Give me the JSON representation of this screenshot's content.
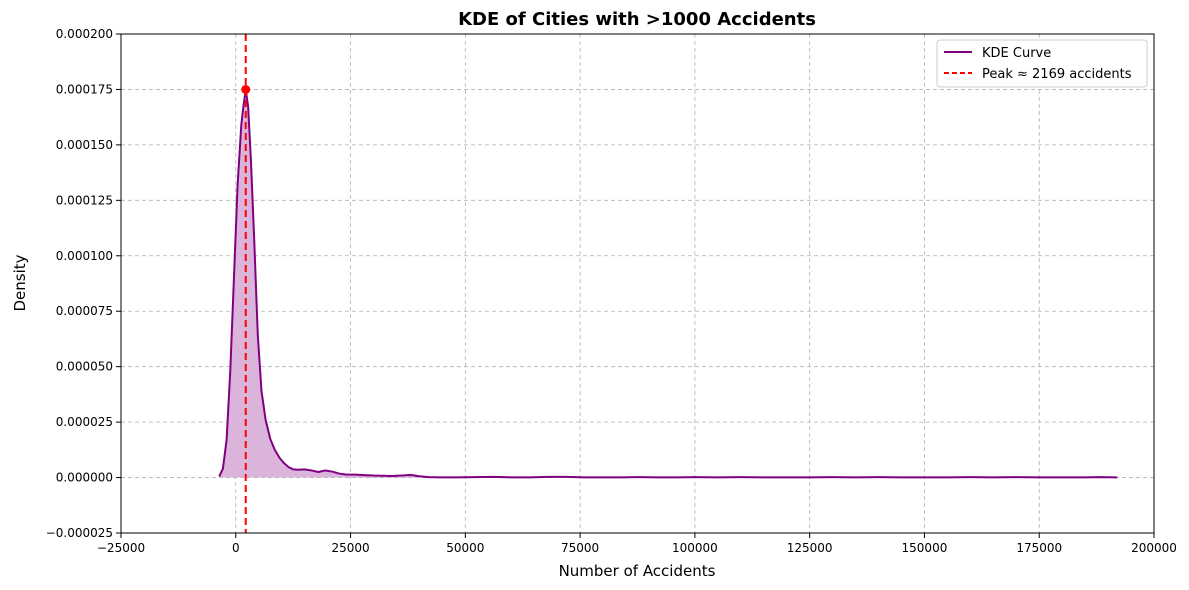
{
  "chart_data": {
    "type": "area",
    "title": "KDE of Cities with >1000 Accidents",
    "xlabel": "Number of Accidents",
    "ylabel": "Density",
    "xlim": [
      -25000,
      200000
    ],
    "ylim": [
      -2.5e-05,
      0.0002
    ],
    "x_ticks": [
      -25000,
      0,
      25000,
      50000,
      75000,
      100000,
      125000,
      150000,
      175000,
      200000
    ],
    "y_ticks": [
      -2.5e-05,
      0,
      2.5e-05,
      5e-05,
      7.5e-05,
      0.0001,
      0.000125,
      0.00015,
      0.000175,
      0.0002
    ],
    "x_tick_labels": [
      "−25000",
      "0",
      "25000",
      "50000",
      "75000",
      "100000",
      "125000",
      "150000",
      "175000",
      "200000"
    ],
    "y_tick_labels": [
      "−0.000025",
      "0.000000",
      "0.000025",
      "0.000050",
      "0.000075",
      "0.000100",
      "0.000125",
      "0.000150",
      "0.000175",
      "0.000200"
    ],
    "grid": true,
    "legend_position": "top-right",
    "series": [
      {
        "name": "KDE Curve",
        "color": "#800080",
        "fill_color": "#d8b0d8",
        "x": [
          -3600,
          -2800,
          -2000,
          -1200,
          -400,
          400,
          1200,
          1700,
          2169,
          2700,
          3300,
          4000,
          4800,
          5600,
          6500,
          7500,
          8500,
          9500,
          10500,
          11500,
          12500,
          13500,
          15000,
          16500,
          18000,
          19500,
          21000,
          22500,
          24000,
          26000,
          28000,
          30000,
          32000,
          34000,
          36000,
          38000,
          40000,
          42000,
          45000,
          48000,
          52000,
          56000,
          60000,
          64000,
          68000,
          72000,
          76000,
          80000,
          84000,
          88000,
          92000,
          96000,
          100000,
          105000,
          110000,
          115000,
          120000,
          125000,
          130000,
          135000,
          140000,
          145000,
          150000,
          155000,
          160000,
          165000,
          170000,
          175000,
          180000,
          185000,
          188000,
          192000
        ],
        "y": [
          5e-07,
          4e-06,
          1.7e-05,
          4.8e-05,
          9e-05,
          0.000132,
          0.000159,
          0.000168,
          0.000175,
          0.000167,
          0.000143,
          0.000108,
          6.4e-05,
          3.9e-05,
          2.6e-05,
          1.75e-05,
          1.25e-05,
          9e-06,
          6.5e-06,
          4.7e-06,
          3.7e-06,
          3.5e-06,
          3.7e-06,
          3.2e-06,
          2.5e-06,
          3.2e-06,
          2.7e-06,
          1.8e-06,
          1.4e-06,
          1.3e-06,
          1.1e-06,
          9e-07,
          8e-07,
          7e-07,
          9e-07,
          1.2e-06,
          6e-07,
          2e-07,
          1e-07,
          1e-07,
          2e-07,
          3e-07,
          1e-07,
          1e-07,
          3e-07,
          3e-07,
          1e-07,
          1e-07,
          1e-07,
          2e-07,
          1e-07,
          1e-07,
          2e-07,
          1e-07,
          2e-07,
          1e-07,
          1e-07,
          1e-07,
          2e-07,
          1e-07,
          2e-07,
          1e-07,
          1e-07,
          1e-07,
          2e-07,
          1e-07,
          2e-07,
          1e-07,
          1e-07,
          1e-07,
          2e-07,
          1e-07
        ]
      },
      {
        "name": "Peak ≈ 2169 accidents",
        "color": "#ff0000",
        "style": "dashed-vertical",
        "x": 2169,
        "marker_y": 0.000175
      }
    ]
  }
}
